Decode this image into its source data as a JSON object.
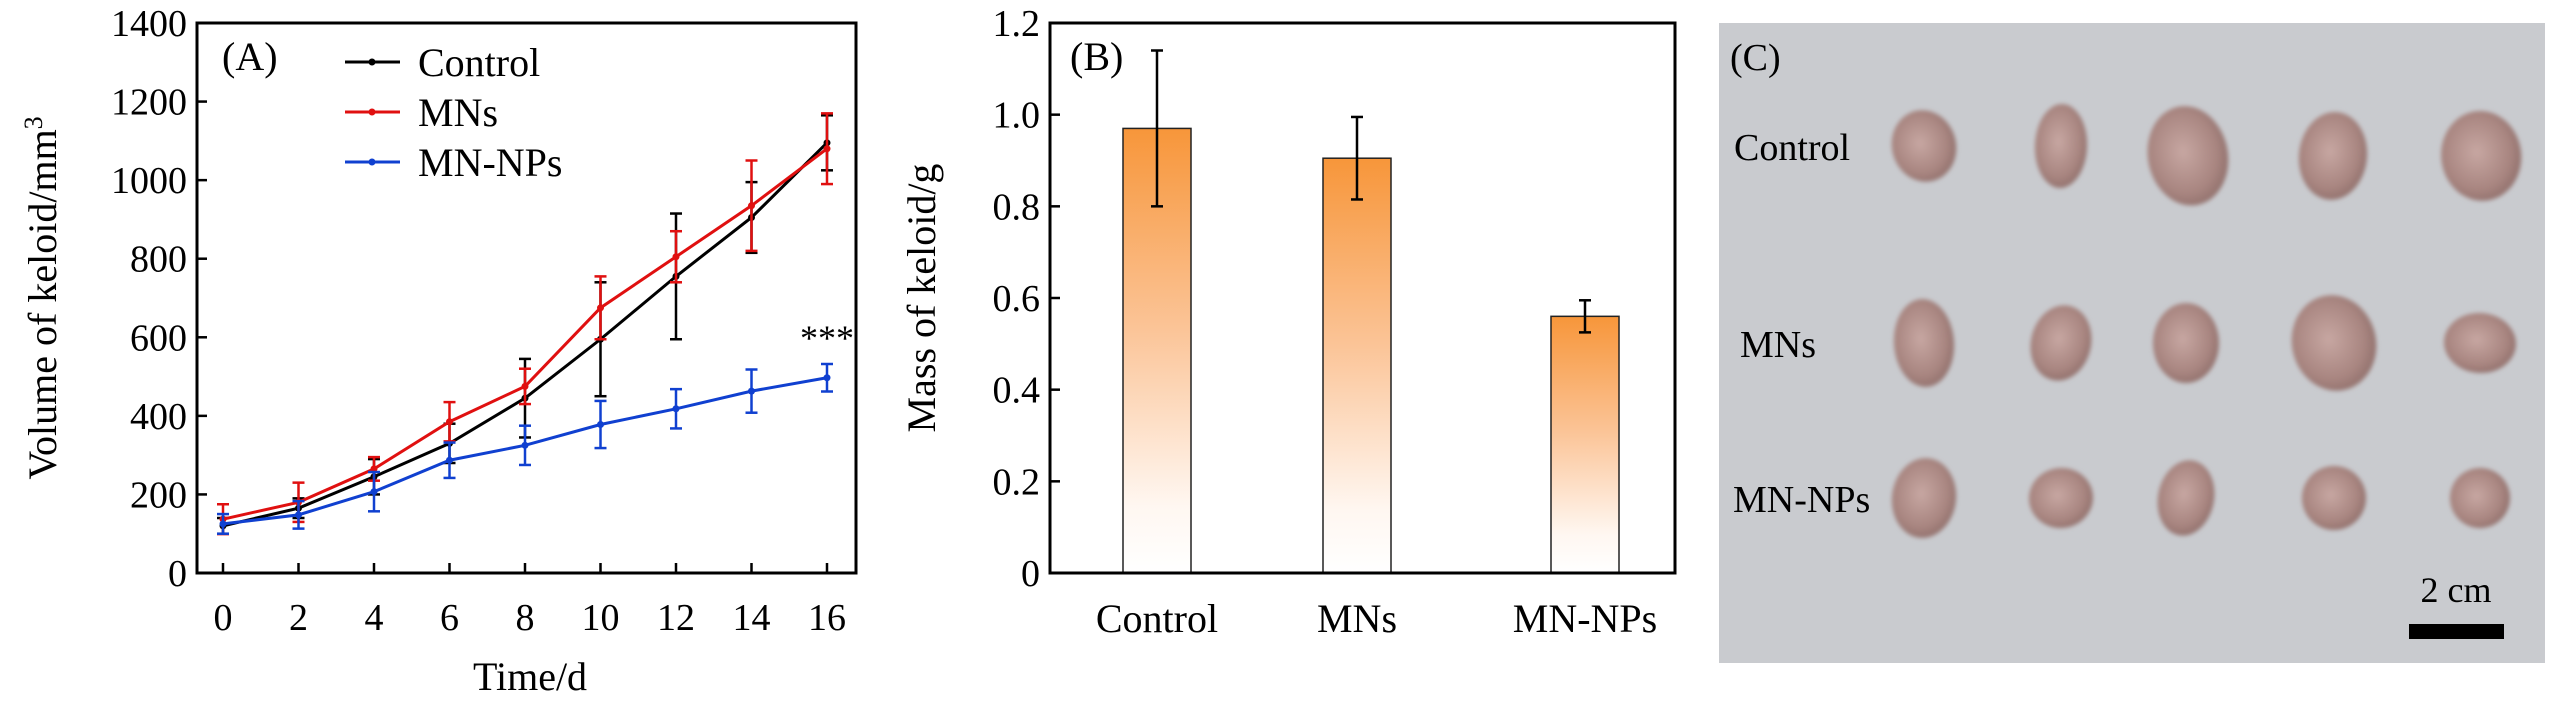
{
  "chart_data": [
    {
      "type": "line",
      "panel_label": "(A)",
      "xlabel": "Time/d",
      "ylabel": "Volume of keloid/mm",
      "ylabel_sup": "3",
      "xlim": [
        0,
        16
      ],
      "ylim": [
        0,
        1400
      ],
      "xticks": [
        0,
        2,
        4,
        6,
        8,
        10,
        12,
        14,
        16
      ],
      "yticks": [
        0,
        200,
        400,
        600,
        800,
        1000,
        1200,
        1400
      ],
      "x": [
        0,
        2,
        4,
        6,
        8,
        10,
        12,
        14,
        16
      ],
      "legend_position": "top-left",
      "annotation": "***",
      "series": [
        {
          "name": "Control",
          "color": "#000000",
          "values": [
            120,
            165,
            245,
            330,
            445,
            595,
            755,
            905,
            1095
          ],
          "errors": [
            20,
            25,
            45,
            50,
            100,
            145,
            160,
            90,
            70
          ]
        },
        {
          "name": "MNs",
          "color": "#e01010",
          "values": [
            137,
            180,
            265,
            385,
            475,
            675,
            805,
            935,
            1080
          ],
          "errors": [
            38,
            50,
            30,
            50,
            45,
            80,
            65,
            115,
            90
          ]
        },
        {
          "name": "MN-NPs",
          "color": "#1040d0",
          "values": [
            125,
            148,
            207,
            287,
            325,
            378,
            418,
            463,
            497
          ],
          "errors": [
            25,
            35,
            50,
            45,
            50,
            60,
            50,
            55,
            35
          ]
        }
      ]
    },
    {
      "type": "bar",
      "panel_label": "(B)",
      "xlabel": "",
      "ylabel": "Mass of keloid/g",
      "ylim": [
        0,
        1.2
      ],
      "yticks": [
        "0",
        "0.2",
        "0.4",
        "0.6",
        "0.8",
        "1.0",
        "1.2"
      ],
      "categories": [
        "Control",
        "MNs",
        "MN-NPs"
      ],
      "values": [
        0.97,
        0.905,
        0.56
      ],
      "errors": [
        0.17,
        0.09,
        0.035
      ],
      "bar_color": "#f7963a"
    }
  ],
  "photo_panel": {
    "panel_label": "(C)",
    "row_labels": [
      "Control",
      "MNs",
      "MN-NPs"
    ],
    "samples_per_row": 5,
    "scale_bar_label": "2 cm",
    "background": "#c9cbcf"
  }
}
